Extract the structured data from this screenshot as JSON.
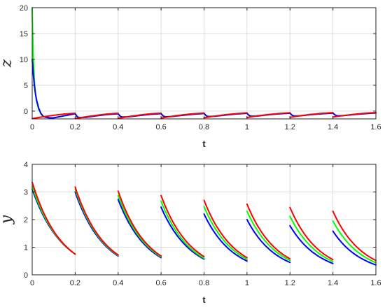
{
  "colors": {
    "blue": "#0000ff",
    "green": "#00ff00",
    "red": "#ff0000",
    "grid": "#dcdcdc",
    "axis": "#262626"
  },
  "chart_data": [
    {
      "type": "line",
      "xlabel": "t",
      "ylabel": "z",
      "xlim": [
        0,
        1.6
      ],
      "ylim": [
        -1.5,
        20
      ],
      "xticks": [
        0,
        0.2,
        0.4,
        0.6,
        0.8,
        1,
        1.2,
        1.4,
        1.6
      ],
      "xtick_labels": [
        "0",
        "0.2",
        "0.4",
        "0.6",
        "0.8",
        "1",
        "1.2",
        "1.4",
        "1.6"
      ],
      "yticks": [
        0,
        5,
        10,
        15,
        20
      ],
      "ytick_labels": [
        "0",
        "5",
        "10",
        "15",
        "20"
      ],
      "grid": true,
      "legend": "none",
      "series": [
        {
          "color": "green",
          "x": [
            0,
            0.002,
            0.005,
            0.01,
            0.015,
            0.02,
            0.03,
            0.04,
            0.05,
            0.06,
            0.08,
            0.1,
            0.15,
            0.2,
            0.2,
            0.21,
            0.22,
            0.25,
            0.3,
            0.35,
            0.4,
            0.4,
            0.41,
            0.42,
            0.45,
            0.5,
            0.55,
            0.6,
            0.6,
            0.61,
            0.62,
            0.65,
            0.7,
            0.75,
            0.8,
            0.8,
            0.81,
            0.82,
            0.85,
            0.9,
            0.95,
            1.0,
            1.0,
            1.01,
            1.02,
            1.05,
            1.1,
            1.15,
            1.2,
            1.2,
            1.21,
            1.22,
            1.25,
            1.3,
            1.35,
            1.4,
            1.4,
            1.41,
            1.42,
            1.45,
            1.5,
            1.55,
            1.6
          ],
          "y": [
            20,
            15.5,
            10.5,
            6,
            3.5,
            2.0,
            0.4,
            -0.5,
            -1.0,
            -1.2,
            -1.3,
            -1.3,
            -0.9,
            -0.5,
            -0.5,
            -1.1,
            -1.25,
            -1.2,
            -0.9,
            -0.65,
            -0.5,
            -0.5,
            -1.0,
            -1.15,
            -1.1,
            -0.85,
            -0.62,
            -0.48,
            -0.48,
            -0.95,
            -1.1,
            -1.05,
            -0.8,
            -0.6,
            -0.45,
            -0.45,
            -0.9,
            -1.05,
            -1.0,
            -0.75,
            -0.55,
            -0.42,
            -0.42,
            -0.85,
            -1.0,
            -0.95,
            -0.7,
            -0.52,
            -0.4,
            -0.4,
            -0.8,
            -0.95,
            -0.9,
            -0.68,
            -0.5,
            -0.38,
            -0.38,
            -0.75,
            -0.9,
            -0.85,
            -0.65,
            -0.48,
            -0.35
          ]
        },
        {
          "color": "blue",
          "x": [
            0,
            0.002,
            0.005,
            0.01,
            0.015,
            0.02,
            0.03,
            0.04,
            0.05,
            0.06,
            0.08,
            0.1,
            0.15,
            0.2,
            0.2,
            0.21,
            0.22,
            0.25,
            0.3,
            0.35,
            0.4,
            0.4,
            0.41,
            0.42,
            0.45,
            0.5,
            0.55,
            0.6,
            0.6,
            0.61,
            0.62,
            0.65,
            0.7,
            0.75,
            0.8,
            0.8,
            0.81,
            0.82,
            0.85,
            0.9,
            0.95,
            1.0,
            1.0,
            1.01,
            1.02,
            1.05,
            1.1,
            1.15,
            1.2,
            1.2,
            1.21,
            1.22,
            1.25,
            1.3,
            1.35,
            1.4,
            1.4,
            1.41,
            1.42,
            1.45,
            1.5,
            1.55,
            1.6
          ],
          "y": [
            10,
            9.0,
            7.2,
            5.0,
            3.4,
            2.2,
            0.6,
            -0.4,
            -0.95,
            -1.15,
            -1.3,
            -1.3,
            -0.9,
            -0.5,
            -0.5,
            -1.1,
            -1.25,
            -1.2,
            -0.9,
            -0.65,
            -0.5,
            -0.5,
            -1.0,
            -1.15,
            -1.1,
            -0.85,
            -0.62,
            -0.48,
            -0.48,
            -0.95,
            -1.1,
            -1.05,
            -0.8,
            -0.6,
            -0.45,
            -0.45,
            -0.9,
            -1.05,
            -1.0,
            -0.75,
            -0.55,
            -0.42,
            -0.42,
            -0.85,
            -1.0,
            -0.95,
            -0.7,
            -0.52,
            -0.4,
            -0.4,
            -0.8,
            -0.95,
            -0.9,
            -0.68,
            -0.5,
            -0.38,
            -0.38,
            -0.75,
            -0.9,
            -0.85,
            -0.65,
            -0.48,
            -0.35
          ]
        },
        {
          "color": "red",
          "x": [
            0,
            0.05,
            0.1,
            0.15,
            0.2,
            0.2,
            0.25,
            0.3,
            0.35,
            0.4,
            0.4,
            0.45,
            0.5,
            0.55,
            0.6,
            0.6,
            0.65,
            0.7,
            0.75,
            0.8,
            0.8,
            0.85,
            0.9,
            0.95,
            1.0,
            1.0,
            1.05,
            1.1,
            1.15,
            1.2,
            1.2,
            1.25,
            1.3,
            1.35,
            1.4,
            1.4,
            1.45,
            1.5,
            1.55,
            1.6
          ],
          "y": [
            -1.45,
            -1.1,
            -0.8,
            -0.55,
            -0.4,
            -1.45,
            -1.1,
            -0.8,
            -0.55,
            -0.4,
            -1.4,
            -1.05,
            -0.75,
            -0.52,
            -0.38,
            -1.35,
            -1.0,
            -0.72,
            -0.5,
            -0.36,
            -1.3,
            -0.95,
            -0.68,
            -0.48,
            -0.34,
            -1.25,
            -0.9,
            -0.65,
            -0.45,
            -0.32,
            -1.2,
            -0.88,
            -0.62,
            -0.42,
            -0.3,
            -1.15,
            -0.85,
            -0.6,
            -0.4,
            -0.28
          ]
        }
      ]
    },
    {
      "type": "line",
      "xlabel": "t",
      "ylabel": "y",
      "xlim": [
        0,
        1.6
      ],
      "ylim": [
        0,
        4
      ],
      "xticks": [
        0,
        0.2,
        0.4,
        0.6,
        0.8,
        1,
        1.2,
        1.4,
        1.6
      ],
      "xtick_labels": [
        "0",
        "0.2",
        "0.4",
        "0.6",
        "0.8",
        "1",
        "1.2",
        "1.4",
        "1.6"
      ],
      "yticks": [
        0,
        1,
        2,
        3,
        4
      ],
      "ytick_labels": [
        "0",
        "1",
        "2",
        "3",
        "4"
      ],
      "grid": true,
      "legend": "none",
      "segments": [
        {
          "t0": 0.0,
          "t1": 0.2,
          "red": [
            3.35,
            0.75
          ],
          "green": [
            3.2,
            0.75
          ],
          "blue": [
            3.1,
            0.75
          ]
        },
        {
          "t0": 0.2,
          "t1": 0.4,
          "red": [
            3.18,
            0.72
          ],
          "green": [
            3.1,
            0.7
          ],
          "blue": [
            3.0,
            0.68
          ]
        },
        {
          "t0": 0.4,
          "t1": 0.6,
          "red": [
            3.03,
            0.68
          ],
          "green": [
            2.87,
            0.65
          ],
          "blue": [
            2.73,
            0.62
          ]
        },
        {
          "t0": 0.6,
          "t1": 0.8,
          "red": [
            2.87,
            0.66
          ],
          "green": [
            2.67,
            0.6
          ],
          "blue": [
            2.45,
            0.57
          ]
        },
        {
          "t0": 0.8,
          "t1": 1.0,
          "red": [
            2.7,
            0.62
          ],
          "green": [
            2.47,
            0.56
          ],
          "blue": [
            2.2,
            0.5
          ]
        },
        {
          "t0": 1.0,
          "t1": 1.2,
          "red": [
            2.56,
            0.58
          ],
          "green": [
            2.3,
            0.52
          ],
          "blue": [
            2.0,
            0.45
          ]
        },
        {
          "t0": 1.2,
          "t1": 1.4,
          "red": [
            2.44,
            0.55
          ],
          "green": [
            2.12,
            0.48
          ],
          "blue": [
            1.78,
            0.41
          ]
        },
        {
          "t0": 1.4,
          "t1": 1.6,
          "red": [
            2.3,
            0.52
          ],
          "green": [
            1.95,
            0.44
          ],
          "blue": [
            1.58,
            0.36
          ]
        }
      ]
    }
  ]
}
